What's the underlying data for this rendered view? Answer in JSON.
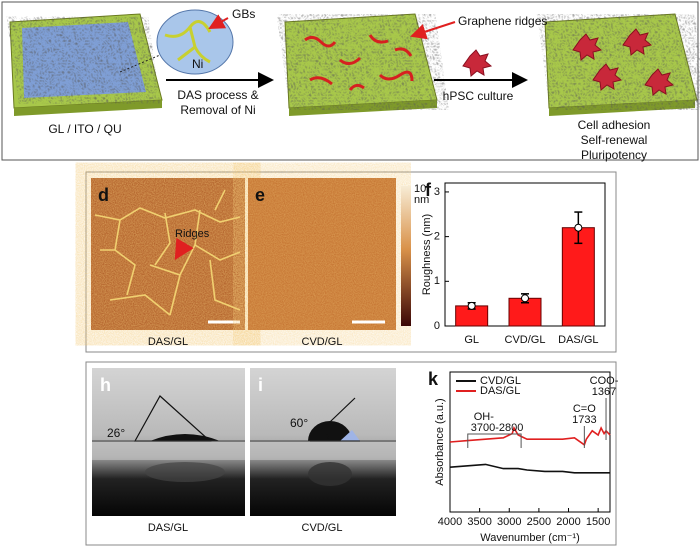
{
  "schematic": {
    "gbs": "GBs",
    "ni": "Ni",
    "substrate": "GL / ITO / QU",
    "process": [
      "DAS process &",
      "Removal of Ni"
    ],
    "ridges": "Graphene ridges",
    "culture": "hPSC culture",
    "outcomes": [
      "Cell adhesion",
      "Self-renewal",
      "Pluripotency"
    ]
  },
  "afm": {
    "d": {
      "letter": "d",
      "caption": "DAS/GL",
      "annotation": "Ridges"
    },
    "e": {
      "letter": "e",
      "caption": "CVD/GL"
    },
    "colorbar": {
      "max": "10",
      "unit": "nm"
    }
  },
  "contact": {
    "h": {
      "letter": "h",
      "angle": "26°",
      "caption": "DAS/GL"
    },
    "i": {
      "letter": "i",
      "angle": "60°",
      "caption": "CVD/GL"
    }
  },
  "chart_data": [
    {
      "type": "bar",
      "letter": "f",
      "ylabel": "Roughness (nm)",
      "categories": [
        "GL",
        "CVD/GL",
        "DAS/GL"
      ],
      "values": [
        0.45,
        0.62,
        2.2
      ],
      "errors": [
        0.07,
        0.1,
        0.35
      ],
      "color": "#ff1a1a",
      "ylim": [
        0,
        3.2
      ],
      "yticks": [
        0,
        1,
        2,
        3
      ]
    },
    {
      "type": "line",
      "letter": "k",
      "xlabel": "Wavenumber (cm⁻¹)",
      "ylabel": "Absorbance (a.u.)",
      "legend": "upper left",
      "x": [
        4000,
        3700,
        3400,
        3100,
        2950,
        2920,
        2850,
        2700,
        2400,
        2100,
        1900,
        1733,
        1700,
        1600,
        1500,
        1450,
        1400,
        1367,
        1300
      ],
      "series": [
        {
          "name": "CVD/GL",
          "color": "#111111",
          "values": [
            0.32,
            0.33,
            0.34,
            0.31,
            0.31,
            0.31,
            0.31,
            0.3,
            0.29,
            0.29,
            0.28,
            0.28,
            0.28,
            0.28,
            0.28,
            0.28,
            0.28,
            0.28,
            0.28
          ]
        },
        {
          "name": "DAS/GL",
          "color": "#e02020",
          "values": [
            0.5,
            0.51,
            0.52,
            0.53,
            0.56,
            0.6,
            0.55,
            0.52,
            0.52,
            0.52,
            0.53,
            0.48,
            0.52,
            0.58,
            0.55,
            0.6,
            0.56,
            0.58,
            0.55
          ]
        }
      ],
      "xlim": [
        4000,
        1300
      ],
      "xticks": [
        4000,
        3500,
        3000,
        2500,
        2000,
        1500
      ],
      "ylim": [
        0,
        1
      ],
      "annotations": [
        "OH-",
        "3700-2800",
        "C=O",
        "1733",
        "COO-",
        "1367"
      ]
    }
  ]
}
